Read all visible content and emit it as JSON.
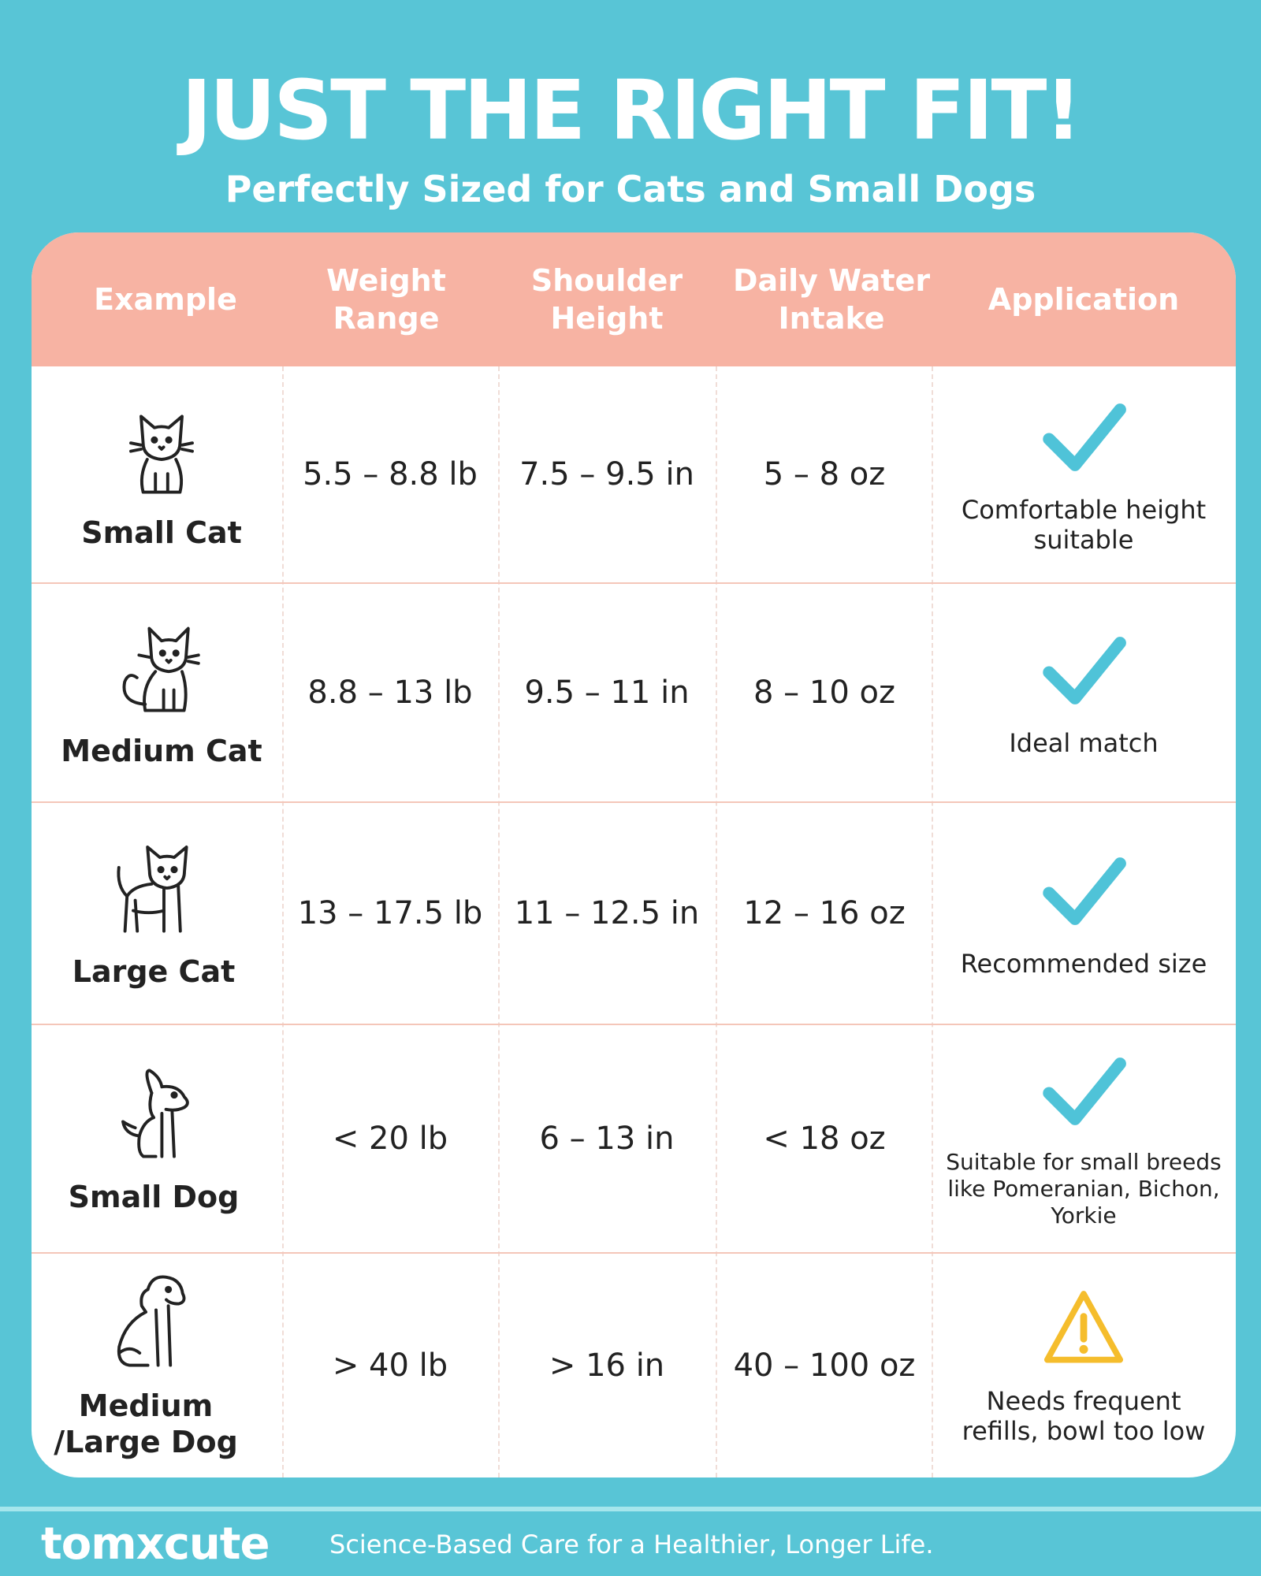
{
  "header": {
    "title": "JUST THE RIGHT FIT!",
    "subtitle": "Perfectly Sized for Cats and Small Dogs"
  },
  "table": {
    "columns": [
      {
        "label": "Example"
      },
      {
        "label": "Weight Range"
      },
      {
        "label": "Shoulder Height"
      },
      {
        "label": "Daily Water Intake"
      },
      {
        "label": "Application"
      }
    ],
    "rows": [
      {
        "pet": "Small Cat",
        "icon": "small-cat-icon",
        "weight": "5.5 – 8.8 lb",
        "height": "7.5 – 9.5 in",
        "water": "5 – 8 oz",
        "status_icon": "checkmark-icon",
        "application": "Comfortable height suitable"
      },
      {
        "pet": "Medium Cat",
        "icon": "medium-cat-icon",
        "weight": "8.8 – 13 lb",
        "height": "9.5 – 11 in",
        "water": "8 – 10 oz",
        "status_icon": "checkmark-icon",
        "application": "Ideal match"
      },
      {
        "pet": "Large Cat",
        "icon": "large-cat-icon",
        "weight": "13 – 17.5 lb",
        "height": "11 – 12.5 in",
        "water": "12 – 16 oz",
        "status_icon": "checkmark-icon",
        "application": "Recommended size"
      },
      {
        "pet": "Small Dog",
        "icon": "small-dog-icon",
        "weight": "< 20 lb",
        "height": "6 – 13 in",
        "water": "< 18 oz",
        "status_icon": "checkmark-icon",
        "application": "Suitable for small breeds like Pomeranian, Bichon, Yorkie"
      },
      {
        "pet": "Medium /Large Dog",
        "icon": "large-dog-icon",
        "weight": "> 40 lb",
        "height": "> 16 in",
        "water": "40 – 100 oz",
        "status_icon": "warning-icon",
        "application": "Needs frequent refills, bowl too low"
      }
    ]
  },
  "footer": {
    "brand": "tomxcute",
    "tagline": "Science-Based Care for a Healthier, Longer Life."
  },
  "colors": {
    "background": "#58c5d6",
    "header_row": "#f7b3a3",
    "check": "#4fc3d8",
    "warning": "#f5bd2c"
  }
}
